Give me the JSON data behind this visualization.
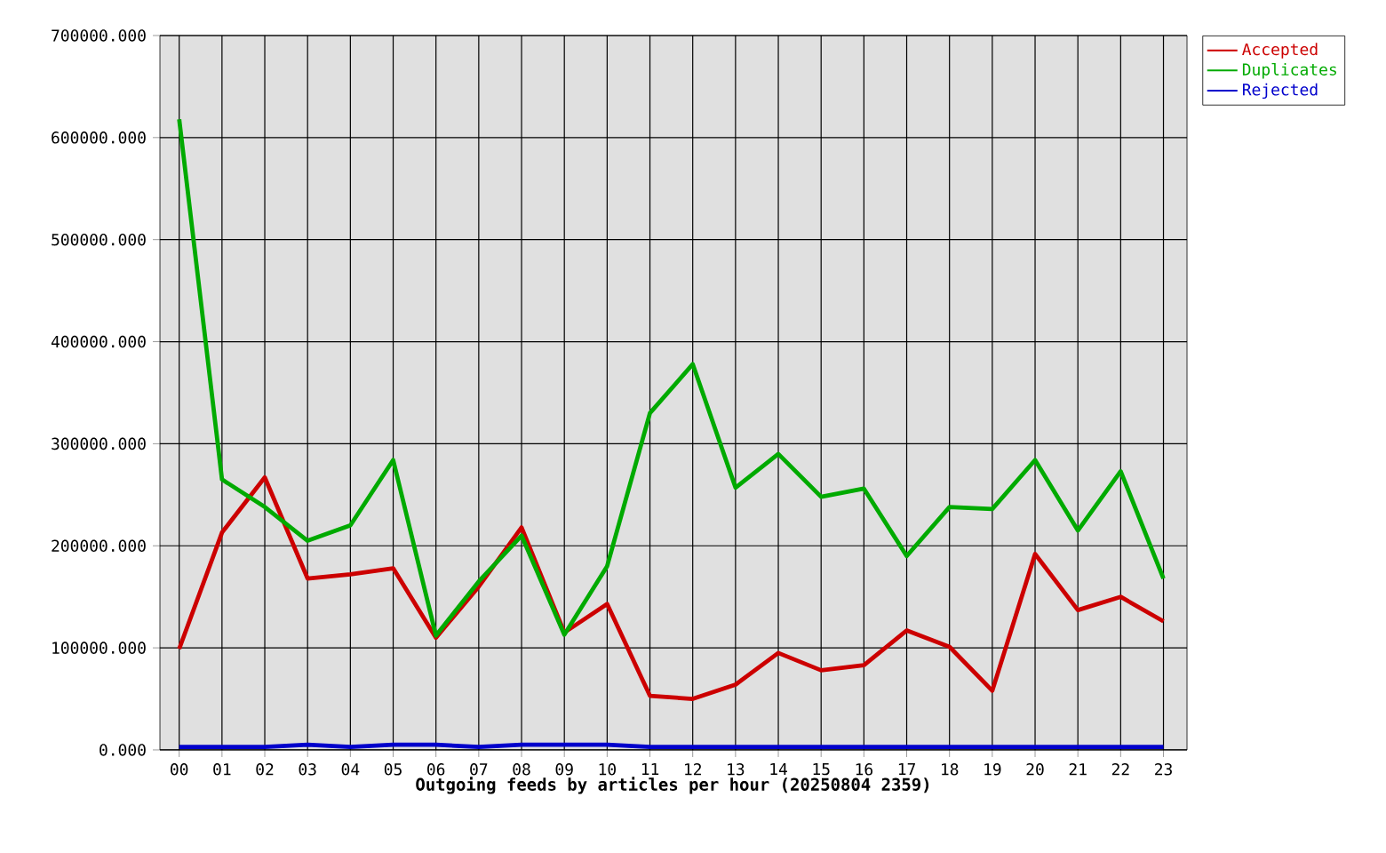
{
  "chart_data": {
    "type": "line",
    "xlabel": "Outgoing feeds by articles per hour (20250804 2359)",
    "categories": [
      "00",
      "01",
      "02",
      "03",
      "04",
      "05",
      "06",
      "07",
      "08",
      "09",
      "10",
      "11",
      "12",
      "13",
      "14",
      "15",
      "16",
      "17",
      "18",
      "19",
      "20",
      "21",
      "22",
      "23"
    ],
    "series": [
      {
        "name": "Accepted",
        "color": "#cc0000",
        "values": [
          99000,
          213000,
          267000,
          168000,
          172000,
          178000,
          110000,
          160000,
          218000,
          115000,
          143000,
          53000,
          50000,
          64000,
          95000,
          78000,
          83000,
          117000,
          101000,
          58000,
          192000,
          137000,
          150000,
          126000
        ]
      },
      {
        "name": "Duplicates",
        "color": "#00aa00",
        "values": [
          618000,
          265000,
          238000,
          205000,
          220000,
          284000,
          112000,
          165000,
          210000,
          113000,
          180000,
          330000,
          378000,
          257000,
          290000,
          248000,
          256000,
          190000,
          238000,
          236000,
          284000,
          215000,
          273000,
          168000
        ]
      },
      {
        "name": "Rejected",
        "color": "#0000cc",
        "values": [
          3000,
          3000,
          3000,
          5000,
          3000,
          5000,
          5000,
          3000,
          5000,
          5000,
          5000,
          3000,
          3000,
          3000,
          3000,
          3000,
          3000,
          3000,
          3000,
          3000,
          3000,
          3000,
          3000,
          3000
        ]
      }
    ],
    "ylim": [
      0,
      700000
    ],
    "yticks": [
      {
        "value": 0,
        "label": "0.000"
      },
      {
        "value": 100000,
        "label": "100000.000"
      },
      {
        "value": 200000,
        "label": "200000.000"
      },
      {
        "value": 300000,
        "label": "300000.000"
      },
      {
        "value": 400000,
        "label": "400000.000"
      },
      {
        "value": 500000,
        "label": "500000.000"
      },
      {
        "value": 600000,
        "label": "600000.000"
      },
      {
        "value": 700000,
        "label": "700000.000"
      }
    ],
    "grid": true,
    "legend": "top right",
    "marker": "none",
    "line_style": "solid"
  }
}
